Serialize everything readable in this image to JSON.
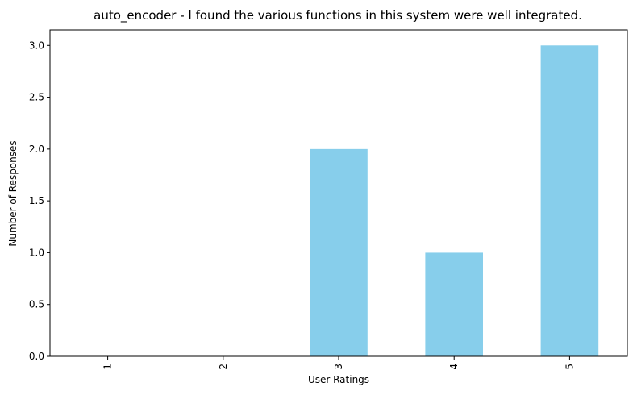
{
  "chart_data": {
    "type": "bar",
    "title": "auto_encoder - I found the various functions in this system were well integrated.",
    "xlabel": "User Ratings",
    "ylabel": "Number of Responses",
    "categories": [
      "1",
      "2",
      "3",
      "4",
      "5"
    ],
    "values": [
      0,
      0,
      2,
      1,
      3
    ],
    "ylim": [
      0,
      3.15
    ],
    "yticks": [
      "0.0",
      "0.5",
      "1.0",
      "1.5",
      "2.0",
      "2.5",
      "3.0"
    ],
    "ytick_values": [
      0,
      0.5,
      1.0,
      1.5,
      2.0,
      2.5,
      3.0
    ],
    "bar_color": "#87CEEB",
    "grid": false,
    "legend": "none",
    "x_tick_rotation": "vertical"
  }
}
